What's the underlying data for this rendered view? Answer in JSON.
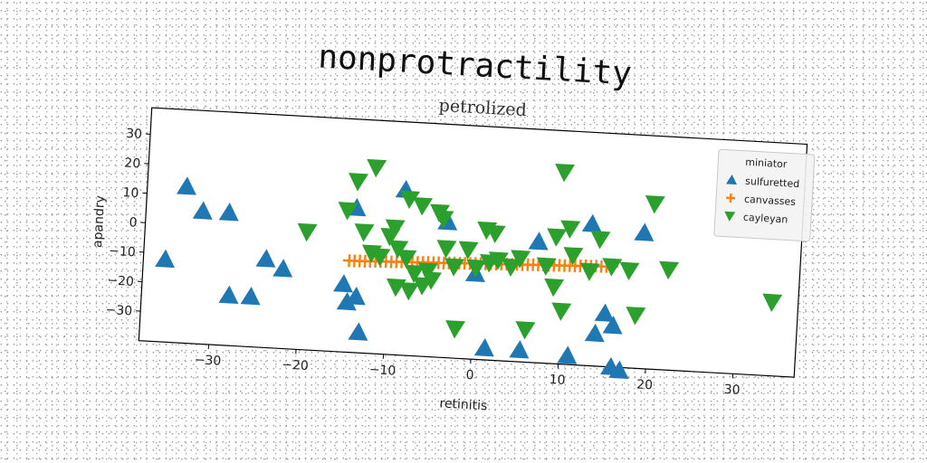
{
  "chart_data": {
    "type": "scatter",
    "suptitle": "nonprotractility",
    "title": "petrolized",
    "xlabel": "retinitis",
    "ylabel": "apandry",
    "xlim": [
      -38,
      37
    ],
    "ylim": [
      -40,
      39
    ],
    "xticks": [
      -30,
      -20,
      -10,
      0,
      10,
      20,
      30
    ],
    "yticks": [
      -30,
      -20,
      -10,
      0,
      10,
      20,
      30
    ],
    "grid": false,
    "legend": {
      "title": "miniator",
      "placement": "upper right",
      "entries": [
        "sulfuretted",
        "canvasses",
        "cayleyan"
      ]
    },
    "series": [
      {
        "name": "sulfuretted",
        "marker": "triangle-up",
        "color": "#1f77b4",
        "points": [
          [
            -35.5,
            -12
          ],
          [
            -33.5,
            13
          ],
          [
            -31.5,
            5
          ],
          [
            -28.5,
            5
          ],
          [
            -28,
            -23
          ],
          [
            -25.5,
            -23
          ],
          [
            -24,
            -10
          ],
          [
            -22,
            -13
          ],
          [
            -15,
            -17
          ],
          [
            -14.5,
            -23
          ],
          [
            -14,
            9
          ],
          [
            -13.5,
            -21
          ],
          [
            -13,
            -33
          ],
          [
            -8.5,
            16
          ],
          [
            -3.5,
            6
          ],
          [
            0,
            -11
          ],
          [
            1.5,
            -36
          ],
          [
            5.5,
            -36
          ],
          [
            7,
            1
          ],
          [
            11,
            -37
          ],
          [
            13,
            8
          ],
          [
            14,
            -29
          ],
          [
            15,
            -22
          ],
          [
            16,
            -26
          ],
          [
            16,
            -40
          ],
          [
            17,
            -41
          ],
          [
            19,
            6
          ]
        ]
      },
      {
        "name": "canvasses",
        "marker": "plus",
        "color": "#ff7f0e",
        "points": [
          [
            -14.5,
            -9
          ],
          [
            -13.9,
            -9
          ],
          [
            -13.3,
            -8.9
          ],
          [
            -12.7,
            -8.9
          ],
          [
            -12.1,
            -8.8
          ],
          [
            -11.5,
            -8.7
          ],
          [
            -10.9,
            -8.7
          ],
          [
            -10.3,
            -8.6
          ],
          [
            -9.7,
            -8.6
          ],
          [
            -9.1,
            -8.5
          ],
          [
            -8.5,
            -8.4
          ],
          [
            -7.9,
            -8.4
          ],
          [
            -7.3,
            -8.3
          ],
          [
            -6.7,
            -8.3
          ],
          [
            -6.1,
            -8.2
          ],
          [
            -5.5,
            -8.1
          ],
          [
            -4.9,
            -8.1
          ],
          [
            -4.3,
            -8
          ],
          [
            -3.7,
            -8
          ],
          [
            -3.1,
            -7.9
          ],
          [
            -2.5,
            -7.8
          ],
          [
            -1.9,
            -7.8
          ],
          [
            -1.3,
            -7.7
          ],
          [
            -0.7,
            -7.7
          ],
          [
            -0.1,
            -7.6
          ],
          [
            0.5,
            -7.5
          ],
          [
            1.1,
            -7.5
          ],
          [
            1.7,
            -7.4
          ],
          [
            2.3,
            -7.4
          ],
          [
            2.9,
            -7.3
          ],
          [
            3.5,
            -7.2
          ],
          [
            4.1,
            -7.2
          ],
          [
            4.7,
            -7.1
          ],
          [
            5.3,
            -7.1
          ],
          [
            5.9,
            -7
          ],
          [
            6.5,
            -6.9
          ],
          [
            7.1,
            -6.9
          ],
          [
            7.7,
            -6.8
          ],
          [
            8.3,
            -6.8
          ],
          [
            8.9,
            -6.7
          ],
          [
            9.5,
            -6.6
          ],
          [
            10.1,
            -6.6
          ],
          [
            10.7,
            -6.5
          ],
          [
            11.3,
            -6.5
          ],
          [
            11.9,
            -6.4
          ],
          [
            12.5,
            -6.3
          ],
          [
            13.1,
            -6.3
          ],
          [
            13.7,
            -6.2
          ],
          [
            14.3,
            -6.2
          ],
          [
            14.9,
            -6.1
          ],
          [
            15.5,
            -6
          ]
        ]
      },
      {
        "name": "cayleyan",
        "marker": "triangle-down",
        "color": "#2ca02c",
        "points": [
          [
            -19.5,
            0
          ],
          [
            -15,
            8
          ],
          [
            -14,
            18
          ],
          [
            -13,
            1
          ],
          [
            -12,
            23
          ],
          [
            -12,
            -6
          ],
          [
            -11,
            -7
          ],
          [
            -10,
            0
          ],
          [
            -9.5,
            3
          ],
          [
            -9,
            -4
          ],
          [
            -9,
            -17
          ],
          [
            -8,
            13
          ],
          [
            -8,
            -7
          ],
          [
            -7.5,
            -18
          ],
          [
            -7,
            -12
          ],
          [
            -6.5,
            11
          ],
          [
            -6,
            -16
          ],
          [
            -5.5,
            -11
          ],
          [
            -5,
            -14
          ],
          [
            -4.5,
            9
          ],
          [
            -4,
            7
          ],
          [
            -3.5,
            -3
          ],
          [
            -2.5,
            -9
          ],
          [
            -2,
            -30
          ],
          [
            -1,
            -3
          ],
          [
            0,
            -9
          ],
          [
            1,
            4
          ],
          [
            1.5,
            -7
          ],
          [
            2,
            3
          ],
          [
            2.5,
            -6
          ],
          [
            4,
            -8
          ],
          [
            5,
            -5
          ],
          [
            6,
            -29
          ],
          [
            8,
            -7
          ],
          [
            9,
            -14
          ],
          [
            9,
            3
          ],
          [
            9.5,
            25
          ],
          [
            10,
            -22
          ],
          [
            10.5,
            6
          ],
          [
            11,
            -3
          ],
          [
            13,
            -8
          ],
          [
            14,
            3
          ],
          [
            15.5,
            -6
          ],
          [
            17.5,
            -7
          ],
          [
            18.5,
            -22
          ],
          [
            20,
            16
          ],
          [
            22,
            -6
          ],
          [
            34,
            -15
          ]
        ]
      }
    ]
  }
}
